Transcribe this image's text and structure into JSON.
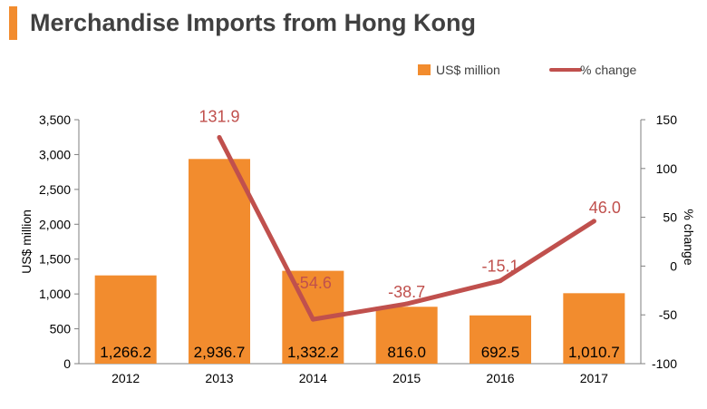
{
  "title": "Merchandise Imports from Hong Kong",
  "colors": {
    "accent": "#f28c2e",
    "bar": "#f28c2e",
    "line": "#c0504d",
    "title": "#404040",
    "axis": "#7f7f7f"
  },
  "chart_data": {
    "type": "bar+line",
    "categories": [
      "2012",
      "2013",
      "2014",
      "2015",
      "2016",
      "2017"
    ],
    "series": [
      {
        "name": "US$ million",
        "type": "bar",
        "axis": "left",
        "values": [
          1266.2,
          2936.7,
          1332.2,
          816.0,
          692.5,
          1010.7
        ],
        "labels": [
          "1,266.2",
          "2,936.7",
          "1,332.2",
          "816.0",
          "692.5",
          "1,010.7"
        ]
      },
      {
        "name": "% change",
        "type": "line",
        "axis": "right",
        "values": [
          null,
          131.9,
          -54.6,
          -38.7,
          -15.1,
          46.0
        ],
        "labels": [
          "",
          "131.9",
          "-54.6",
          "-38.7",
          "-15.1",
          "46.0"
        ]
      }
    ],
    "ylabel": "US$ million",
    "y2label": "% change",
    "ylim": [
      0,
      3500
    ],
    "y2lim": [
      -100,
      150
    ],
    "yticks": [
      "0",
      "500",
      "1,000",
      "1,500",
      "2,000",
      "2,500",
      "3,000",
      "3,500"
    ],
    "y2ticks": [
      "-100",
      "-50",
      "0",
      "50",
      "100",
      "150"
    ],
    "legend_position": "top-right",
    "grid": false
  }
}
